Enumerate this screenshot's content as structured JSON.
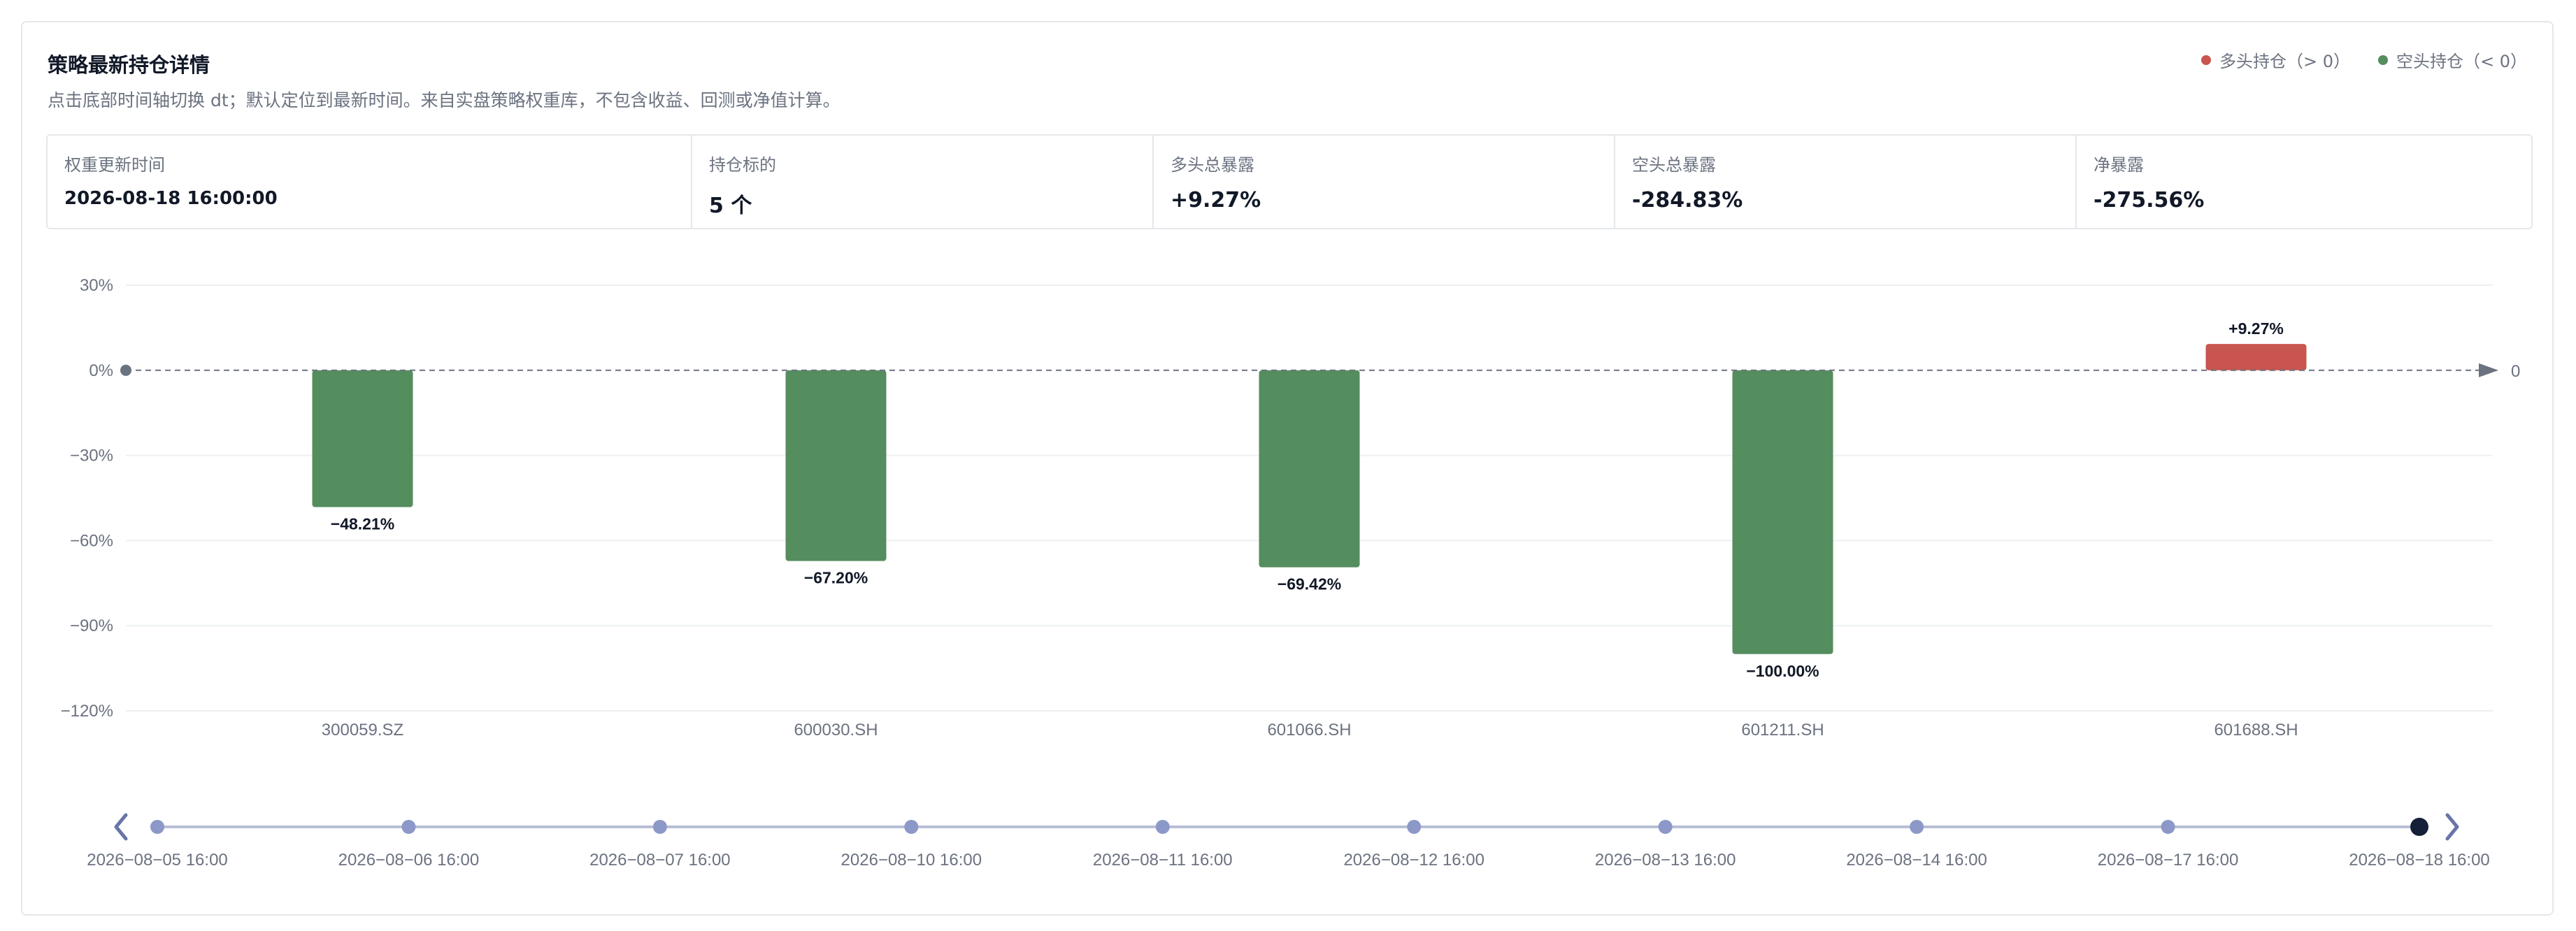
{
  "header": {
    "title": "策略最新持仓详情",
    "subtitle": "点击底部时间轴切换 dt；默认定位到最新时间。来自实盘策略权重库，不包含收益、回测或净值计算。"
  },
  "legend": {
    "long_label": "多头持仓（> 0）",
    "short_label": "空头持仓（< 0）",
    "long_color": "#c8554e",
    "short_color": "#548d5e"
  },
  "stats": [
    {
      "label": "权重更新时间",
      "value": "2026-08-18 16:00:00"
    },
    {
      "label": "持仓标的",
      "value": "5 个"
    },
    {
      "label": "多头总暴露",
      "value": "+9.27%"
    },
    {
      "label": "空头总暴露",
      "value": "-284.83%"
    },
    {
      "label": "净暴露",
      "value": "-275.56%"
    }
  ],
  "chart_data": {
    "type": "bar",
    "categories": [
      "300059.SZ",
      "600030.SH",
      "601066.SH",
      "601211.SH",
      "601688.SH"
    ],
    "values": [
      -48.21,
      -67.2,
      -69.42,
      -100.0,
      9.27
    ],
    "data_labels": [
      "−48.21%",
      "−67.20%",
      "−69.42%",
      "−100.00%",
      "+9.27%"
    ],
    "yticks": [
      30,
      0,
      -30,
      -60,
      -90,
      -120
    ],
    "ytick_labels": [
      "30%",
      "0%",
      "−30%",
      "−60%",
      "−90%",
      "−120%"
    ],
    "ylim": [
      -120,
      30
    ],
    "zero_line_label": "0",
    "grid": true,
    "colors": {
      "positive": "#c8554e",
      "negative": "#548d5e"
    }
  },
  "timeline": {
    "labels": [
      "2026−08−05 16:00",
      "2026−08−06 16:00",
      "2026−08−07 16:00",
      "2026−08−10 16:00",
      "2026−08−11 16:00",
      "2026−08−12 16:00",
      "2026−08−13 16:00",
      "2026−08−14 16:00",
      "2026−08−17 16:00",
      "2026−08−18 16:00"
    ],
    "selected_index": 9
  }
}
